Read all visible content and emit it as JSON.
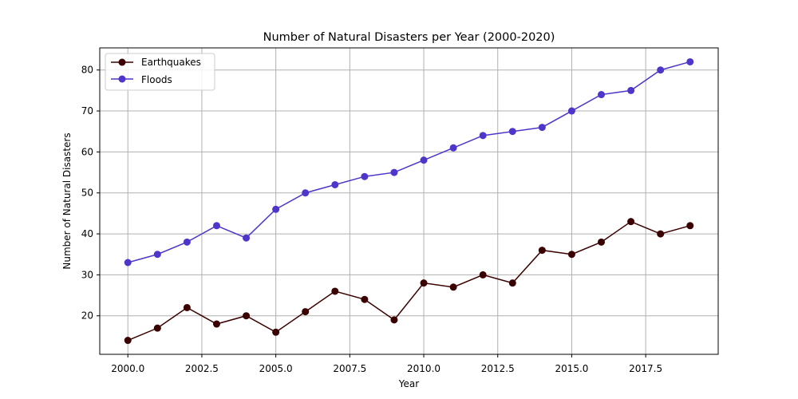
{
  "chart_data": {
    "type": "line",
    "title": "Number of Natural Disasters per Year (2000-2020)",
    "xlabel": "Year",
    "ylabel": "Number of Natural Disasters",
    "xlim": [
      1999.05,
      2019.95
    ],
    "ylim": [
      10.6,
      85.4
    ],
    "xticks": [
      2000.0,
      2002.5,
      2005.0,
      2007.5,
      2010.0,
      2012.5,
      2015.0,
      2017.5
    ],
    "xtick_labels": [
      "2000.0",
      "2002.5",
      "2005.0",
      "2007.5",
      "2010.0",
      "2012.5",
      "2015.0",
      "2017.5"
    ],
    "yticks": [
      20,
      30,
      40,
      50,
      60,
      70,
      80
    ],
    "ytick_labels": [
      "20",
      "30",
      "40",
      "50",
      "60",
      "70",
      "80"
    ],
    "grid": true,
    "legend_position": "upper-left",
    "x": [
      2000,
      2001,
      2002,
      2003,
      2004,
      2005,
      2006,
      2007,
      2008,
      2009,
      2010,
      2011,
      2012,
      2013,
      2014,
      2015,
      2016,
      2017,
      2018,
      2019
    ],
    "series": [
      {
        "name": "Earthquakes",
        "color": "#3b0000",
        "values": [
          14,
          17,
          22,
          18,
          20,
          16,
          21,
          26,
          24,
          19,
          28,
          27,
          30,
          28,
          36,
          35,
          38,
          43,
          40,
          42
        ]
      },
      {
        "name": "Floods",
        "color": "#4f35c9",
        "values": [
          33,
          35,
          38,
          42,
          39,
          46,
          50,
          52,
          54,
          55,
          58,
          61,
          64,
          65,
          66,
          70,
          74,
          75,
          80,
          82
        ]
      }
    ]
  }
}
